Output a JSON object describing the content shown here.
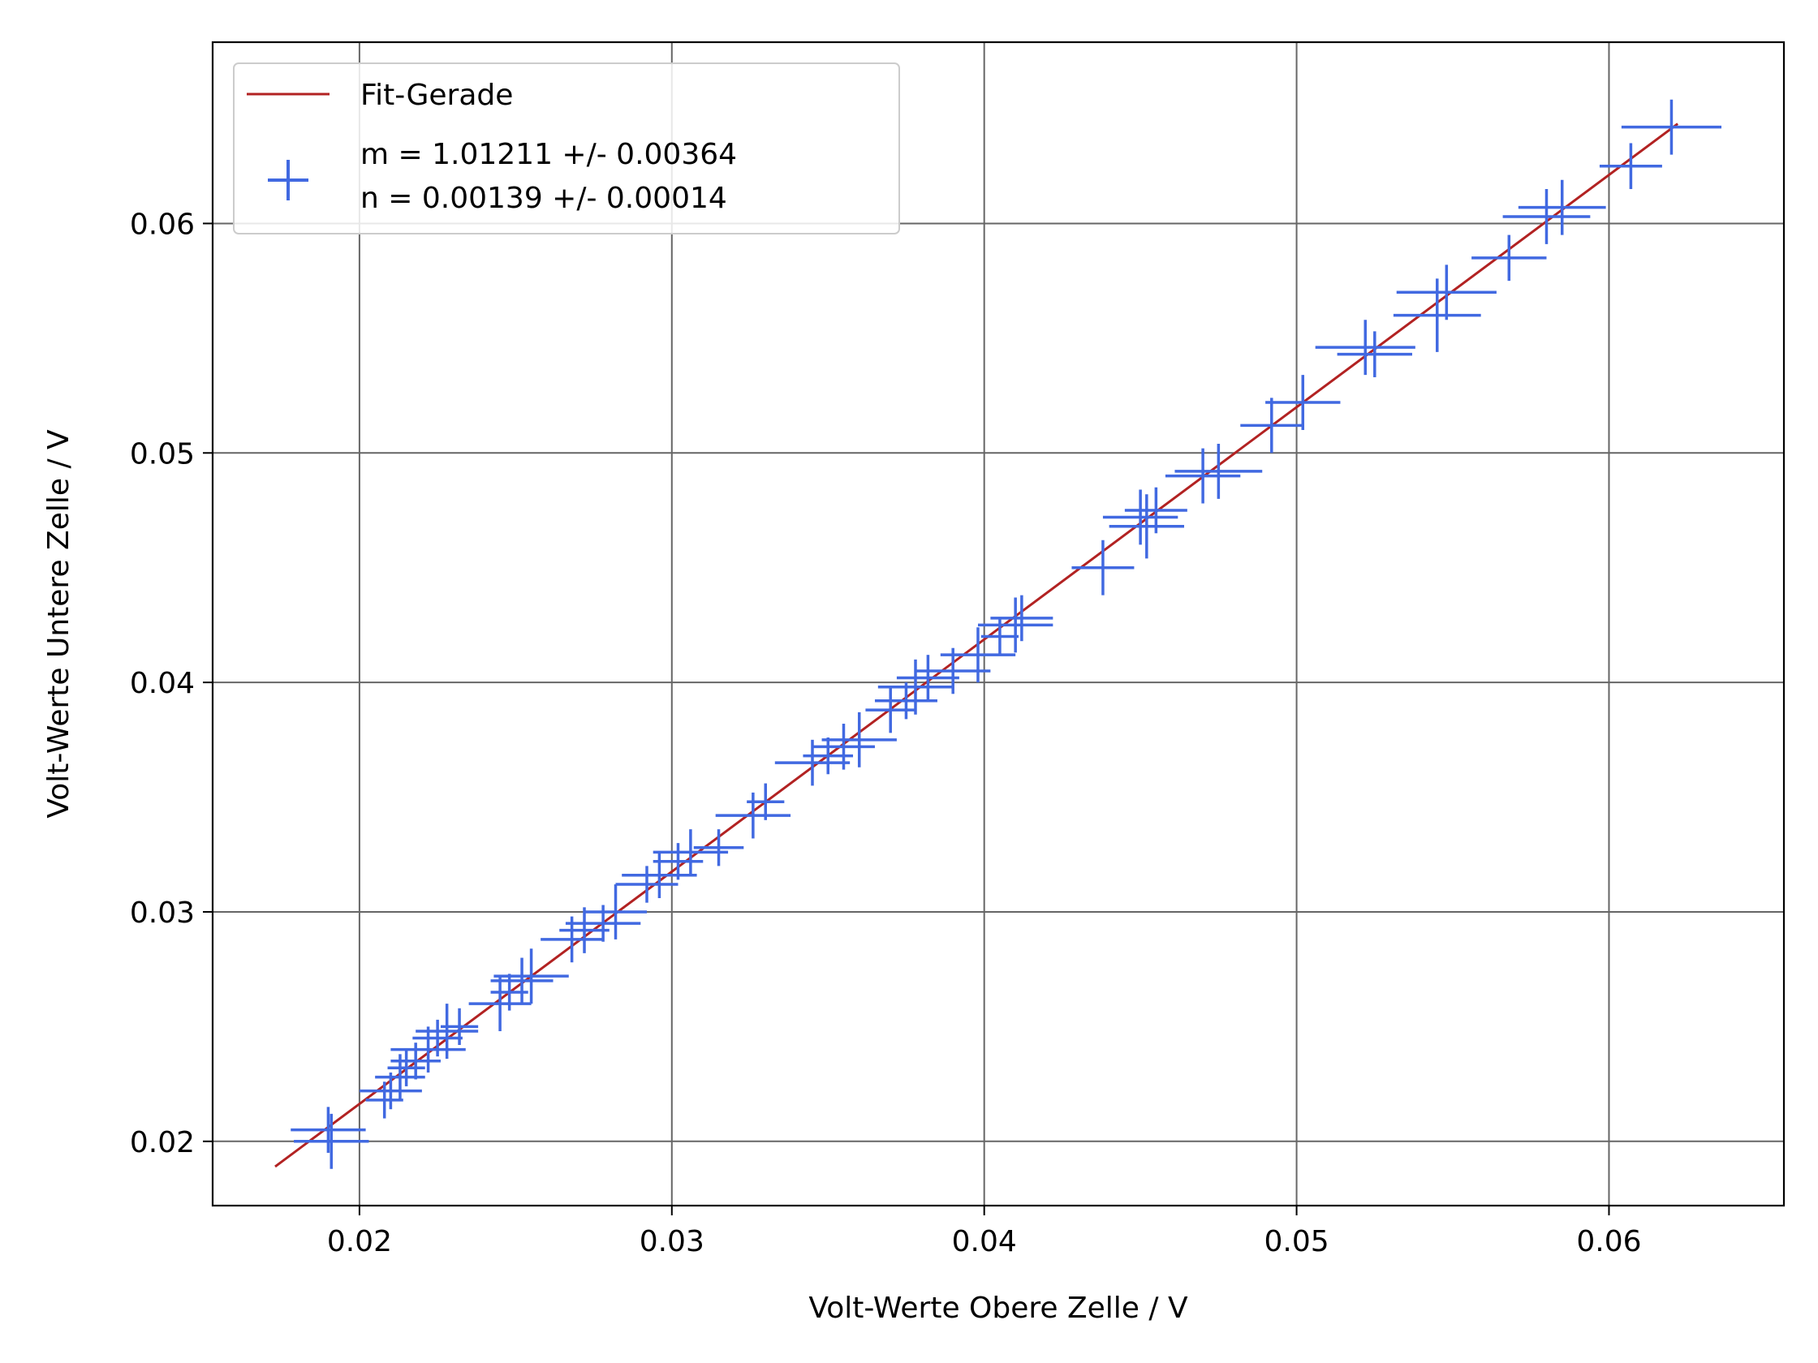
{
  "chart_data": {
    "type": "scatter",
    "xlabel": "Volt-Werte Obere Zelle / V",
    "ylabel": "Volt-Werte Untere Zelle / V",
    "xlim": [
      0.0153,
      0.0656
    ],
    "ylim": [
      0.0172,
      0.0679
    ],
    "xticks": [
      0.02,
      0.03,
      0.04,
      0.05,
      0.06
    ],
    "yticks": [
      0.02,
      0.03,
      0.04,
      0.05,
      0.06
    ],
    "xtick_labels": [
      "0.02",
      "0.03",
      "0.04",
      "0.05",
      "0.06"
    ],
    "ytick_labels": [
      "0.02",
      "0.03",
      "0.04",
      "0.05",
      "0.06"
    ],
    "grid": true,
    "legend_position": "top-left",
    "colors": {
      "fit": "#b22222",
      "points": "#4169e1",
      "grid": "#666666"
    },
    "fit": {
      "label": "Fit-Gerade",
      "slope": 1.01211,
      "intercept": 0.00139,
      "x_range": [
        0.0173,
        0.0622
      ]
    },
    "series": [
      {
        "label_lines": [
          "m = 1.01211 +/- 0.00364",
          "n = 0.00139 +/- 0.00014"
        ],
        "x": [
          0.019,
          0.0191,
          0.0208,
          0.021,
          0.0213,
          0.0215,
          0.0218,
          0.0222,
          0.0225,
          0.0228,
          0.0232,
          0.0245,
          0.0248,
          0.0252,
          0.0255,
          0.0268,
          0.0272,
          0.0278,
          0.0282,
          0.0292,
          0.0296,
          0.0302,
          0.0306,
          0.0315,
          0.0326,
          0.033,
          0.0345,
          0.035,
          0.0355,
          0.036,
          0.037,
          0.0375,
          0.0378,
          0.0382,
          0.039,
          0.0398,
          0.0405,
          0.041,
          0.0412,
          0.0438,
          0.045,
          0.0452,
          0.0455,
          0.047,
          0.0475,
          0.0492,
          0.0502,
          0.0522,
          0.0525,
          0.0545,
          0.0548,
          0.0568,
          0.058,
          0.0585,
          0.0607,
          0.062
        ],
        "y": [
          0.0205,
          0.02,
          0.0218,
          0.0222,
          0.0228,
          0.0232,
          0.0235,
          0.024,
          0.0245,
          0.0248,
          0.025,
          0.026,
          0.0265,
          0.027,
          0.0272,
          0.0288,
          0.0292,
          0.0295,
          0.03,
          0.0312,
          0.0316,
          0.0322,
          0.0326,
          0.0328,
          0.0342,
          0.0348,
          0.0365,
          0.0368,
          0.0372,
          0.0375,
          0.0388,
          0.0392,
          0.0398,
          0.0402,
          0.0405,
          0.0412,
          0.042,
          0.0425,
          0.0428,
          0.045,
          0.0472,
          0.0468,
          0.0475,
          0.049,
          0.0492,
          0.0512,
          0.0522,
          0.0546,
          0.0543,
          0.056,
          0.057,
          0.0585,
          0.0603,
          0.0607,
          0.0625,
          0.0642
        ],
        "xerr": [
          0.0012,
          0.0012,
          0.0006,
          0.001,
          0.0008,
          0.0006,
          0.0008,
          0.0012,
          0.0008,
          0.001,
          0.0006,
          0.001,
          0.0006,
          0.001,
          0.0012,
          0.001,
          0.0008,
          0.0012,
          0.001,
          0.001,
          0.0012,
          0.0008,
          0.0012,
          0.0008,
          0.0012,
          0.0006,
          0.0012,
          0.0008,
          0.001,
          0.0012,
          0.0008,
          0.001,
          0.0012,
          0.001,
          0.0012,
          0.0012,
          0.0006,
          0.0012,
          0.001,
          0.001,
          0.0012,
          0.0012,
          0.001,
          0.0012,
          0.0014,
          0.001,
          0.0012,
          0.0016,
          0.0012,
          0.0014,
          0.0016,
          0.0012,
          0.0014,
          0.0014,
          0.001,
          0.0016
        ],
        "yerr": [
          0.001,
          0.0012,
          0.0008,
          0.0008,
          0.001,
          0.0008,
          0.0008,
          0.001,
          0.0008,
          0.0012,
          0.0008,
          0.0012,
          0.0008,
          0.001,
          0.0012,
          0.001,
          0.001,
          0.0008,
          0.0012,
          0.0008,
          0.001,
          0.0008,
          0.001,
          0.0008,
          0.001,
          0.0008,
          0.001,
          0.0008,
          0.001,
          0.0012,
          0.001,
          0.0008,
          0.0012,
          0.001,
          0.001,
          0.0012,
          0.0008,
          0.0012,
          0.001,
          0.0012,
          0.0012,
          0.0014,
          0.001,
          0.0012,
          0.0012,
          0.0012,
          0.0012,
          0.0012,
          0.001,
          0.0016,
          0.0012,
          0.001,
          0.0012,
          0.0012,
          0.001,
          0.0012
        ]
      }
    ]
  }
}
